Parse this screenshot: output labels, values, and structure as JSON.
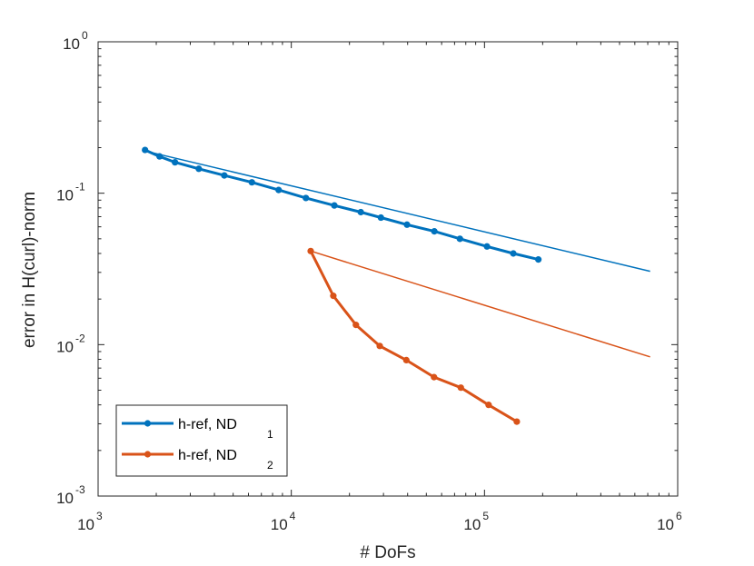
{
  "chart_data": {
    "type": "line",
    "xscale": "log",
    "yscale": "log",
    "xlim": [
      1000,
      1000000
    ],
    "ylim": [
      0.001,
      1
    ],
    "xlabel": "# DoFs",
    "ylabel": "error in H(curl)-norm",
    "x_ticks": [
      {
        "base": "10",
        "exp": "3"
      },
      {
        "base": "10",
        "exp": "4"
      },
      {
        "base": "10",
        "exp": "5"
      },
      {
        "base": "10",
        "exp": "6"
      }
    ],
    "y_ticks": [
      {
        "base": "10",
        "exp": "-3"
      },
      {
        "base": "10",
        "exp": "-2"
      },
      {
        "base": "10",
        "exp": "-1"
      },
      {
        "base": "10",
        "exp": "0"
      }
    ],
    "x_tick_values": [
      1000,
      10000,
      100000,
      1000000
    ],
    "y_tick_values": [
      0.001,
      0.01,
      0.1,
      1
    ],
    "legend_position": "bottom-left",
    "series": [
      {
        "name": "h-ref, ND",
        "subscript": "1",
        "color": "#0072BD",
        "marker": "dot",
        "x": [
          1750,
          2080,
          2500,
          3320,
          4500,
          6250,
          8600,
          11900,
          16700,
          22900,
          29100,
          39700,
          55000,
          74600,
          103000,
          141000,
          190000
        ],
        "y": [
          0.193,
          0.175,
          0.16,
          0.145,
          0.131,
          0.118,
          0.105,
          0.093,
          0.083,
          0.075,
          0.069,
          0.062,
          0.056,
          0.05,
          0.0445,
          0.04,
          0.0365
        ]
      },
      {
        "name": "h-ref, ND",
        "subscript": "2",
        "color": "#D95319",
        "marker": "dot",
        "x": [
          12600,
          16500,
          21600,
          28700,
          39400,
          54800,
          75400,
          105000,
          147000
        ],
        "y": [
          0.0415,
          0.021,
          0.0135,
          0.0098,
          0.0079,
          0.0061,
          0.0052,
          0.004,
          0.0031
        ]
      }
    ],
    "reference_lines": [
      {
        "color": "#0072BD",
        "x": [
          1750,
          720000
        ],
        "y": [
          0.19,
          0.0305
        ]
      },
      {
        "color": "#D95319",
        "x": [
          12600,
          720000
        ],
        "y": [
          0.0415,
          0.0083
        ]
      }
    ]
  }
}
